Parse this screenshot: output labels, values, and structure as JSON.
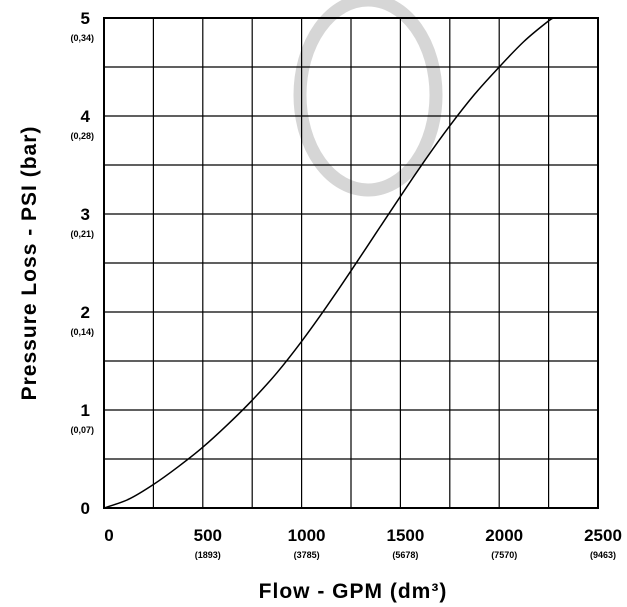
{
  "chart_data": {
    "type": "line",
    "xlabel": "Flow  -  GPM  (dm³)",
    "ylabel": "Pressure Loss  -  PSI (bar)",
    "xlim": [
      0,
      2500
    ],
    "ylim": [
      0,
      5
    ],
    "grid": true,
    "x_ticks": [
      {
        "value": 0,
        "label": "0",
        "sub": ""
      },
      {
        "value": 500,
        "label": "500",
        "sub": "(1893)"
      },
      {
        "value": 1000,
        "label": "1000",
        "sub": "(3785)"
      },
      {
        "value": 1500,
        "label": "1500",
        "sub": "(5678)"
      },
      {
        "value": 2000,
        "label": "2000",
        "sub": "(7570)"
      },
      {
        "value": 2500,
        "label": "2500",
        "sub": "(9463)"
      }
    ],
    "y_ticks": [
      {
        "value": 0,
        "label": "0",
        "sub": ""
      },
      {
        "value": 1,
        "label": "1",
        "sub": "(0,07)"
      },
      {
        "value": 2,
        "label": "2",
        "sub": "(0,14)"
      },
      {
        "value": 3,
        "label": "3",
        "sub": "(0,21)"
      },
      {
        "value": 4,
        "label": "4",
        "sub": "(0,28)"
      },
      {
        "value": 5,
        "label": "5",
        "sub": "(0,34)"
      }
    ],
    "series": [
      {
        "x": [
          0,
          125,
          250,
          375,
          500,
          625,
          750,
          875,
          1000,
          1125,
          1250,
          1375,
          1500,
          1625,
          1750,
          1875,
          2000,
          2125,
          2250,
          2280
        ],
        "y": [
          0,
          0.09,
          0.24,
          0.42,
          0.62,
          0.85,
          1.1,
          1.38,
          1.7,
          2.05,
          2.42,
          2.8,
          3.18,
          3.55,
          3.9,
          4.22,
          4.5,
          4.76,
          4.97,
          5.0
        ]
      }
    ]
  }
}
